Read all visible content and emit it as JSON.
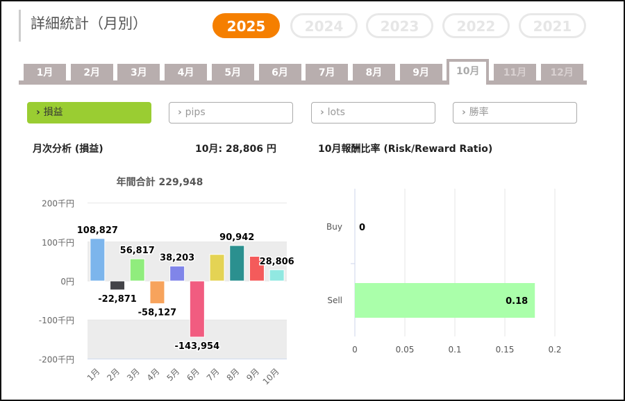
{
  "header": {
    "title": "詳細統計（月別）",
    "years": [
      "2025",
      "2024",
      "2023",
      "2022",
      "2021"
    ],
    "active_year": "2025"
  },
  "month_tabs": [
    "1月",
    "2月",
    "3月",
    "4月",
    "5月",
    "6月",
    "7月",
    "8月",
    "9月",
    "10月",
    "11月",
    "12月"
  ],
  "active_month": "10月",
  "metric_buttons": [
    {
      "icon": "chevron-right-icon",
      "label": "損益"
    },
    {
      "icon": "chevron-right-icon",
      "label": "pips"
    },
    {
      "icon": "chevron-right-icon",
      "label": "lots"
    },
    {
      "icon": "chevron-right-icon",
      "label": "勝率"
    }
  ],
  "left": {
    "heading": "月次分析 (損益)",
    "month_total": "10月:  28,806 円"
  },
  "right": {
    "heading": "10月報酬比率 (Risk/Reward Ratio)"
  },
  "chart_data": [
    {
      "type": "bar",
      "title": "年間合計 229,948",
      "categories": [
        "1月",
        "2月",
        "3月",
        "4月",
        "5月",
        "6月",
        "7月",
        "8月",
        "9月",
        "10月"
      ],
      "values": [
        108827,
        -22871,
        56817,
        -58127,
        38203,
        -143954,
        68100,
        90942,
        63205,
        28806
      ],
      "labels": [
        "108,827",
        "-22,871",
        "56,817",
        "-58,127",
        "38,203",
        "-143,954",
        "",
        "90,942",
        "",
        "28,806"
      ],
      "colors": [
        "#7cb5ec",
        "#434348",
        "#90ed7d",
        "#f7a35c",
        "#8085e9",
        "#f15c80",
        "#e4d354",
        "#2b908f",
        "#f45b5b",
        "#91e8e1"
      ],
      "yticks": [
        {
          "v": 200000,
          "label": "200千円"
        },
        {
          "v": 100000,
          "label": "100千円"
        },
        {
          "v": 0,
          "label": "0円"
        },
        {
          "v": -100000,
          "label": "-100千円"
        },
        {
          "v": -200000,
          "label": "-200千円"
        }
      ],
      "ylim": [
        -200000,
        200000
      ]
    },
    {
      "type": "bar",
      "orientation": "horizontal",
      "categories": [
        "Buy",
        "Sell"
      ],
      "values": [
        0,
        0.18
      ],
      "labels": [
        "0",
        "0.18"
      ],
      "color": "#aaffaa",
      "xticks": [
        "0",
        "0.05",
        "0.1",
        "0.15",
        "0.2"
      ],
      "xlim": [
        0,
        0.2
      ]
    }
  ]
}
